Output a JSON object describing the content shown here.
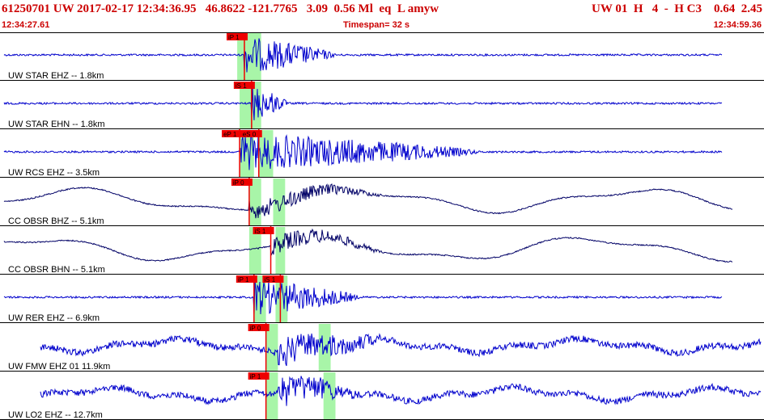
{
  "header": {
    "event_line": "61250701 UW 2017-02-17 12:34:36.95   46.8622 -121.7765   3.09  0.56 Ml  eq  L amyw",
    "quality_line": "UW 01  H   4  -  H C3    0.64  2.45",
    "start_time": "12:34:27.61",
    "timespan_label": "Timespan=  32 s",
    "end_time": "12:34:59.36"
  },
  "colors": {
    "header_text": "#cc0000",
    "trace_blue": "#0000cc",
    "trace_navy": "#000066",
    "pick_red": "#ee0000",
    "window_green": "#a8f5a8",
    "separator": "#000000"
  },
  "chart_data": {
    "type": "seismogram",
    "x_unit": "seconds from 12:34:27.61",
    "x_range": [
      0,
      31.75
    ],
    "traces": [
      {
        "label": "UW STAR EHZ -- 1.8km",
        "color": "blue",
        "picks": [
          {
            "text": "iP 1",
            "t": 10.2
          }
        ],
        "windows": [
          [
            9.9,
            10.9
          ]
        ],
        "onset": 10.2,
        "coda_end": 14
      },
      {
        "label": "UW STAR EHN -- 1.8km",
        "color": "blue",
        "picks": [
          {
            "text": "iS 1",
            "t": 10.5
          }
        ],
        "windows": [
          [
            10.0,
            10.9
          ]
        ],
        "onset": 10.5,
        "coda_end": 12
      },
      {
        "label": "UW RCS EHZ -- 3.5km",
        "color": "blue",
        "picks": [
          {
            "text": "eP 1",
            "t": 10.0
          },
          {
            "text": "eS 0",
            "t": 10.8
          }
        ],
        "windows": [
          [
            10.0,
            10.6
          ],
          [
            10.8,
            11.4
          ]
        ],
        "onset": 10.0,
        "coda_end": 20
      },
      {
        "label": "CC OBSR BHZ -- 5.1km",
        "color": "navy",
        "picks": [
          {
            "text": "iP 0",
            "t": 10.4
          }
        ],
        "windows": [
          [
            10.4,
            10.9
          ],
          [
            11.4,
            11.9
          ]
        ],
        "onset": 10.4,
        "coda_end": 16
      },
      {
        "label": "CC OBSR BHN -- 5.1km",
        "color": "navy",
        "picks": [
          {
            "text": "iS 1",
            "t": 11.3
          }
        ],
        "windows": [
          [
            10.4,
            10.9
          ],
          [
            11.5,
            11.9
          ]
        ],
        "onset": 11.3,
        "coda_end": 16
      },
      {
        "label": "UW RER EHZ -- 6.9km",
        "color": "blue",
        "picks": [
          {
            "text": "iP 1",
            "t": 10.6
          },
          {
            "text": "iS 1",
            "t": 11.7
          }
        ],
        "windows": [
          [
            10.6,
            11.1
          ],
          [
            11.5,
            12.0
          ]
        ],
        "onset": 10.6,
        "coda_end": 15
      },
      {
        "label": "UW FMW EHZ 01 11.9km",
        "color": "blue",
        "picks": [
          {
            "text": "iP 0",
            "t": 11.1
          }
        ],
        "windows": [
          [
            11.1,
            11.6
          ],
          [
            13.3,
            13.8
          ]
        ],
        "onset": 11.6,
        "coda_end": 16
      },
      {
        "label": "UW LO2 EHZ -- 12.7km",
        "color": "blue",
        "picks": [
          {
            "text": "iP 1",
            "t": 11.1
          }
        ],
        "windows": [
          [
            11.1,
            11.6
          ],
          [
            13.5,
            14.0
          ]
        ],
        "onset": 11.6,
        "coda_end": 15
      }
    ]
  }
}
